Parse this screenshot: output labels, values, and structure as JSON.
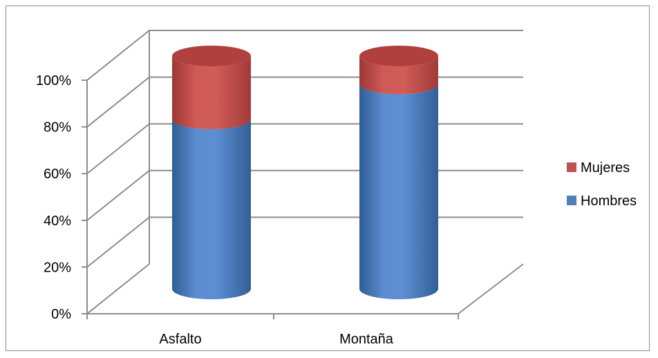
{
  "chart_data": {
    "type": "bar",
    "stacked": "percent",
    "style": "3d-cylinder",
    "categories": [
      "Asfalto",
      "Montaña"
    ],
    "series": [
      {
        "name": "Hombres",
        "values": [
          73,
          88
        ],
        "color": "#4f81bd"
      },
      {
        "name": "Mujeres",
        "values": [
          27,
          12
        ],
        "color": "#c0504d"
      }
    ],
    "ylim": [
      0,
      100
    ],
    "yticks": [
      "0%",
      "20%",
      "40%",
      "60%",
      "80%",
      "100%"
    ],
    "grid": true,
    "legend": "right"
  }
}
